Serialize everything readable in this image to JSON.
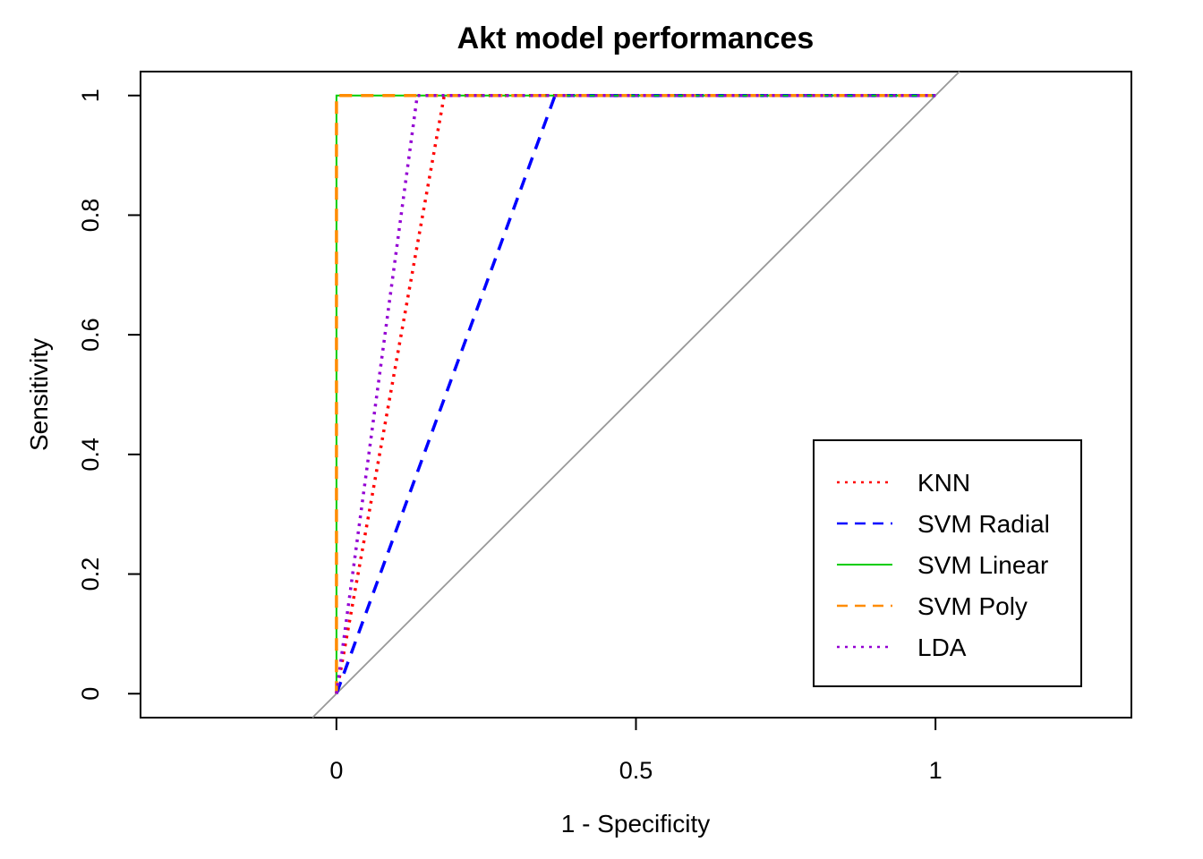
{
  "chart_data": {
    "type": "line",
    "title": "Akt model performances",
    "xlabel": "1 - Specificity",
    "ylabel": "Sensitivity",
    "xlim": [
      -0.327,
      1.327
    ],
    "ylim": [
      -0.04,
      1.04
    ],
    "x_ticks": [
      0,
      0.5,
      1
    ],
    "x_tick_labels": [
      "0",
      "0.5",
      "1"
    ],
    "y_ticks": [
      0,
      0.2,
      0.4,
      0.6,
      0.8,
      1
    ],
    "y_tick_labels": [
      "0",
      "0.2",
      "0.4",
      "0.6",
      "0.8",
      "1"
    ],
    "grid": false,
    "legend_position": "bottom-right",
    "reference_line": {
      "color": "#999999",
      "points": [
        [
          0,
          0
        ],
        [
          1,
          1
        ]
      ]
    },
    "series": [
      {
        "name": "KNN",
        "color": "#ff0000",
        "style": "dotted",
        "x": [
          0,
          0.18,
          1
        ],
        "y": [
          0,
          1,
          1
        ]
      },
      {
        "name": "SVM Radial",
        "color": "#0000ff",
        "style": "dashed",
        "x": [
          0,
          0.365,
          1
        ],
        "y": [
          0,
          1,
          1
        ]
      },
      {
        "name": "SVM Linear",
        "color": "#00cd00",
        "style": "solid",
        "x": [
          0,
          0,
          1
        ],
        "y": [
          0,
          1,
          1
        ]
      },
      {
        "name": "SVM Poly",
        "color": "#ff8c00",
        "style": "dashed",
        "x": [
          0,
          0,
          1
        ],
        "y": [
          0,
          1,
          1
        ]
      },
      {
        "name": "LDA",
        "color": "#9400d3",
        "style": "dotted",
        "x": [
          0,
          0.135,
          1
        ],
        "y": [
          0,
          1,
          1
        ]
      }
    ]
  }
}
